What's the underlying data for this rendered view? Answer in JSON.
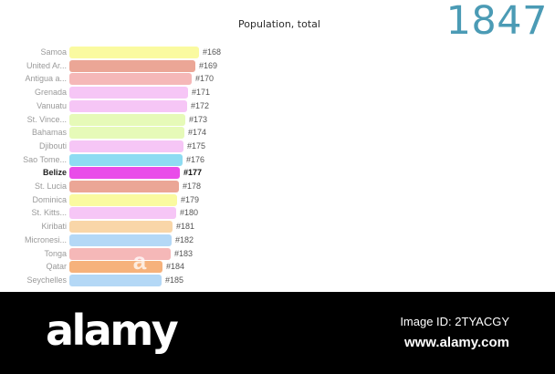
{
  "chart": {
    "title": "Population, total",
    "year": "1847"
  },
  "chart_data": {
    "type": "bar",
    "orientation": "horizontal",
    "title": "Population, total",
    "year": "1847",
    "categories": [
      "Samoa",
      "United Ar...",
      "Antigua a...",
      "Grenada",
      "Vanuatu",
      "St. Vince...",
      "Bahamas",
      "Djibouti",
      "Sao Tome...",
      "Belize",
      "St. Lucia",
      "Dominica",
      "St. Kitts...",
      "Kiribati",
      "Micronesi...",
      "Tonga",
      "Qatar",
      "Seychelles"
    ],
    "ranks": [
      "#168",
      "#169",
      "#170",
      "#171",
      "#172",
      "#173",
      "#174",
      "#175",
      "#176",
      "#177",
      "#178",
      "#179",
      "#180",
      "#181",
      "#182",
      "#183",
      "#184",
      "#185"
    ],
    "values": [
      142,
      138,
      134,
      130,
      129,
      127,
      126,
      125,
      124,
      121,
      120,
      118,
      117,
      113,
      112,
      111,
      102,
      101
    ],
    "colors": [
      "#fafaa0",
      "#eba696",
      "#f5b8b8",
      "#f6c6f6",
      "#f6c6f6",
      "#e6fab8",
      "#e6fab8",
      "#f6c6f6",
      "#8edcf2",
      "#e94ce9",
      "#eba696",
      "#fafaa0",
      "#f6c6f6",
      "#f9d6a8",
      "#b4d8f6",
      "#f5b8b8",
      "#f6b27c",
      "#b4d8f6"
    ],
    "highlight": "Belize",
    "xlim": [
      0,
      175
    ]
  },
  "watermark": {
    "logo": "alamy",
    "image_id": "Image ID: 2TYACGY",
    "url": "www.alamy.com",
    "bar_mark": "a"
  }
}
